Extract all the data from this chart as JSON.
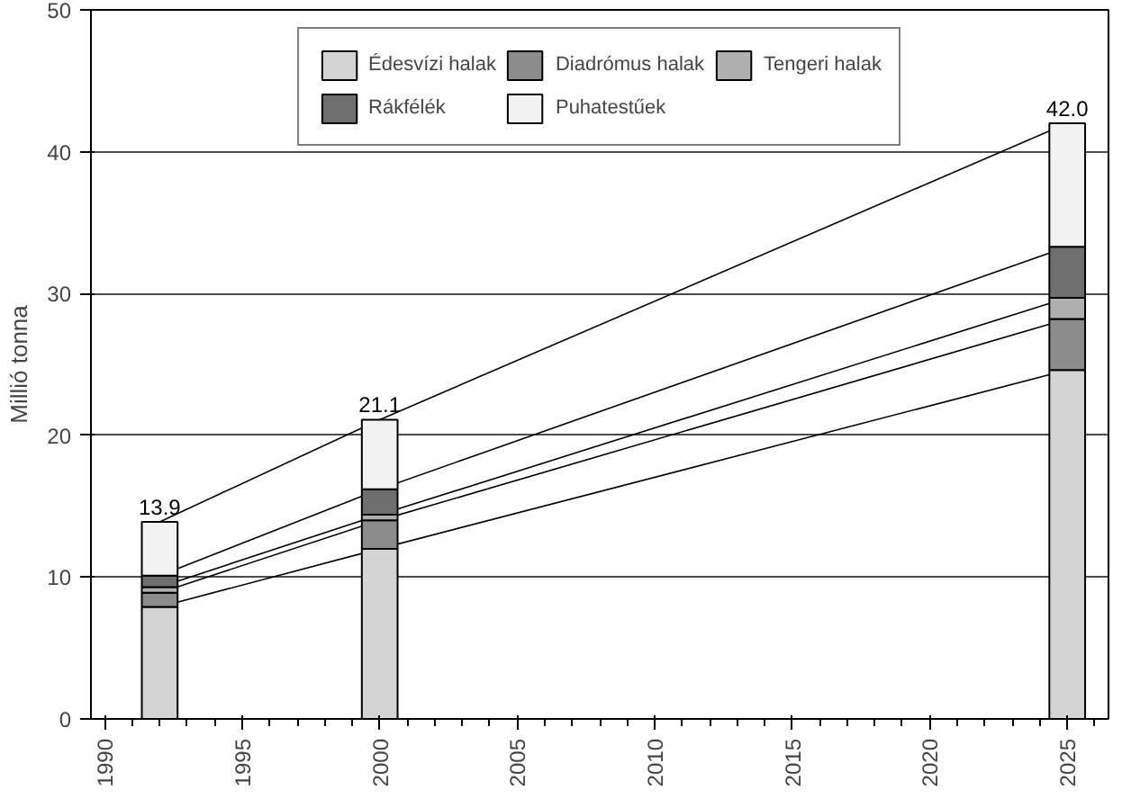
{
  "chart_data": {
    "type": "bar",
    "stacked": true,
    "x": [
      1992,
      2000,
      2025
    ],
    "series": [
      {
        "name": "Édesvízi halak",
        "color": "#d4d4d4",
        "values": [
          7.9,
          12.0,
          24.6
        ]
      },
      {
        "name": "Diadrómus halak",
        "color": "#8c8c8c",
        "values": [
          1.0,
          2.0,
          3.6
        ]
      },
      {
        "name": "Tengeri halak",
        "color": "#b0b0b0",
        "values": [
          0.4,
          0.4,
          1.5
        ]
      },
      {
        "name": "Rákfélék",
        "color": "#6e6e6e",
        "values": [
          0.8,
          1.8,
          3.6
        ]
      },
      {
        "name": "Puhatestűek",
        "color": "#f2f2f2",
        "values": [
          3.8,
          4.9,
          8.7
        ]
      }
    ],
    "totals": [
      "13.9",
      "21.1",
      "42.0"
    ],
    "ylabel": "Millió tonna",
    "xlim": [
      1989.5,
      2026.5
    ],
    "xticks": [
      1990,
      1995,
      2000,
      2005,
      2010,
      2015,
      2020,
      2025
    ],
    "ylim": [
      0,
      50
    ],
    "yticks": [
      0,
      10,
      20,
      30,
      40,
      50
    ],
    "grid": "y",
    "legend": "top"
  }
}
